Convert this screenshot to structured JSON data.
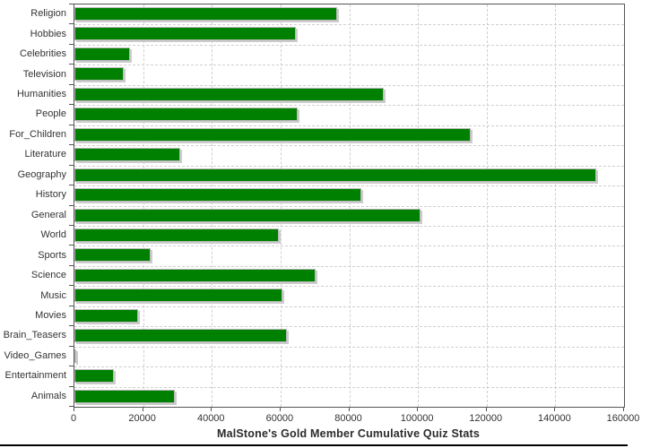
{
  "chart_data": {
    "type": "bar",
    "orientation": "horizontal",
    "title": "MalStone's Gold Member Cumulative Quiz Stats",
    "categories": [
      "Religion",
      "Hobbies",
      "Celebrities",
      "Television",
      "Humanities",
      "People",
      "For_Children",
      "Literature",
      "Geography",
      "History",
      "General",
      "World",
      "Sports",
      "Science",
      "Music",
      "Movies",
      "Brain_Teasers",
      "Video_Games",
      "Entertainment",
      "Animals"
    ],
    "values": [
      76400,
      64500,
      16100,
      14400,
      90000,
      64900,
      115300,
      30700,
      152000,
      83600,
      100800,
      59400,
      22100,
      70300,
      60500,
      18500,
      61800,
      500,
      11600,
      29200
    ],
    "xlabel": "",
    "ylabel": "",
    "xlim": [
      0,
      160000
    ],
    "x_ticks": [
      0,
      20000,
      40000,
      60000,
      80000,
      100000,
      120000,
      140000,
      160000
    ],
    "x_tick_labels": [
      "0",
      "20000",
      "40000",
      "60000",
      "80000",
      "100000",
      "120000",
      "140000",
      "160000"
    ],
    "grid": true,
    "legend": "none",
    "colors": {
      "bar": "#008000",
      "bar_outline": "#b8b8b8",
      "bar_shadow": "#cccccc",
      "grid": "#cfcfcf",
      "axis": "#555555",
      "tick": "#555555",
      "label": "#333333",
      "title": "#2b2b2b",
      "background": "#ffffff",
      "bottom_border": "#000000"
    }
  }
}
